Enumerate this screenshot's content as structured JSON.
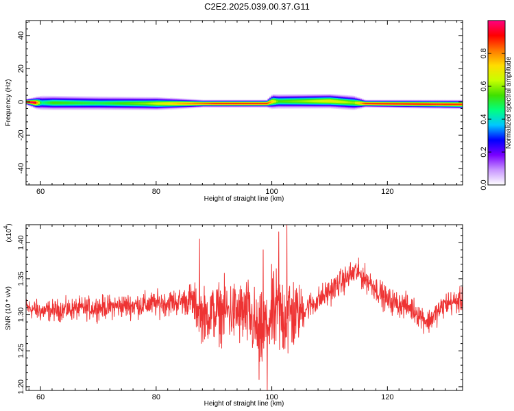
{
  "title": "C2E2.2025.039.00.37.G11",
  "chart_data": [
    {
      "type": "heatmap",
      "xlabel": "Height of straight line (km)",
      "ylabel": "Frequency (Hz)",
      "xlim": [
        57.5,
        133
      ],
      "ylim": [
        -50,
        49
      ],
      "x_ticks": [
        60,
        80,
        100,
        120
      ],
      "y_ticks": [
        40,
        20,
        0,
        -20,
        -40
      ],
      "colorbar": {
        "label": "Normalized spectral amplitude",
        "range": [
          0,
          1
        ],
        "ticks": [
          0.0,
          0.2,
          0.4,
          0.6,
          0.8
        ],
        "colors": [
          "#ffffff",
          "#c896ff",
          "#7a00ff",
          "#0000ff",
          "#00c8ff",
          "#00ff80",
          "#40e000",
          "#c8ff00",
          "#ffdc00",
          "#ff7800",
          "#ff0000",
          "#ff0080"
        ]
      },
      "band": {
        "center_hz": [
          [
            57.5,
            0
          ],
          [
            59,
            -0.5
          ],
          [
            80,
            -1
          ],
          [
            99,
            -1
          ],
          [
            100,
            0.3
          ],
          [
            110,
            0.5
          ],
          [
            116,
            -1
          ],
          [
            133,
            -1.5
          ]
        ],
        "amplitude": [
          [
            57.5,
            1.0
          ],
          [
            59,
            0.95
          ],
          [
            60,
            0.45
          ],
          [
            62,
            0.55
          ],
          [
            70,
            0.5
          ],
          [
            78,
            0.6
          ],
          [
            84,
            0.78
          ],
          [
            90,
            0.9
          ],
          [
            99,
            0.9
          ],
          [
            101,
            0.55
          ],
          [
            105,
            0.6
          ],
          [
            110,
            0.7
          ],
          [
            114,
            0.6
          ],
          [
            116,
            0.9
          ],
          [
            125,
            0.9
          ],
          [
            133,
            0.88
          ]
        ],
        "halfwidth_hz": [
          [
            57.5,
            2
          ],
          [
            60,
            5
          ],
          [
            80,
            4.5
          ],
          [
            88,
            2.5
          ],
          [
            99,
            2.5
          ],
          [
            100,
            5
          ],
          [
            114,
            5
          ],
          [
            116,
            2.5
          ],
          [
            133,
            3
          ]
        ]
      }
    },
    {
      "type": "line",
      "xlabel": "Height of straight line (km)",
      "ylabel": "SNR (10 * v/v)",
      "y_multiplier_label": "(x10",
      "y_multiplier_exp": "4",
      "xlim": [
        57.5,
        133
      ],
      "ylim": [
        1.195,
        1.425
      ],
      "x_ticks": [
        60,
        80,
        100,
        120
      ],
      "y_ticks": [
        "1.20",
        "1.25",
        "1.30",
        "1.35",
        "1.40"
      ],
      "series": [
        {
          "color": "#ee3333",
          "baseline": [
            [
              57.5,
              1.31
            ],
            [
              60,
              1.305
            ],
            [
              70,
              1.31
            ],
            [
              80,
              1.315
            ],
            [
              86,
              1.32
            ],
            [
              88,
              1.3
            ],
            [
              92,
              1.305
            ],
            [
              96,
              1.3
            ],
            [
              98,
              1.27
            ],
            [
              100,
              1.3
            ],
            [
              104,
              1.3
            ],
            [
              108,
              1.32
            ],
            [
              112,
              1.345
            ],
            [
              114.5,
              1.36
            ],
            [
              117,
              1.345
            ],
            [
              120,
              1.32
            ],
            [
              124,
              1.31
            ],
            [
              127,
              1.29
            ],
            [
              130,
              1.315
            ],
            [
              133,
              1.32
            ]
          ],
          "noise_amplitude": [
            [
              57.5,
              0.015
            ],
            [
              85,
              0.02
            ],
            [
              88,
              0.04
            ],
            [
              95,
              0.05
            ],
            [
              103,
              0.07
            ],
            [
              106,
              0.02
            ],
            [
              133,
              0.018
            ]
          ],
          "extremes": [
            [
              87.5,
              1.405
            ],
            [
              88.5,
              1.27
            ],
            [
              97.8,
              1.21
            ],
            [
              99.2,
              1.195
            ],
            [
              101.2,
              1.415
            ],
            [
              102.6,
              1.425
            ],
            [
              98.5,
              1.39
            ]
          ]
        }
      ]
    }
  ]
}
